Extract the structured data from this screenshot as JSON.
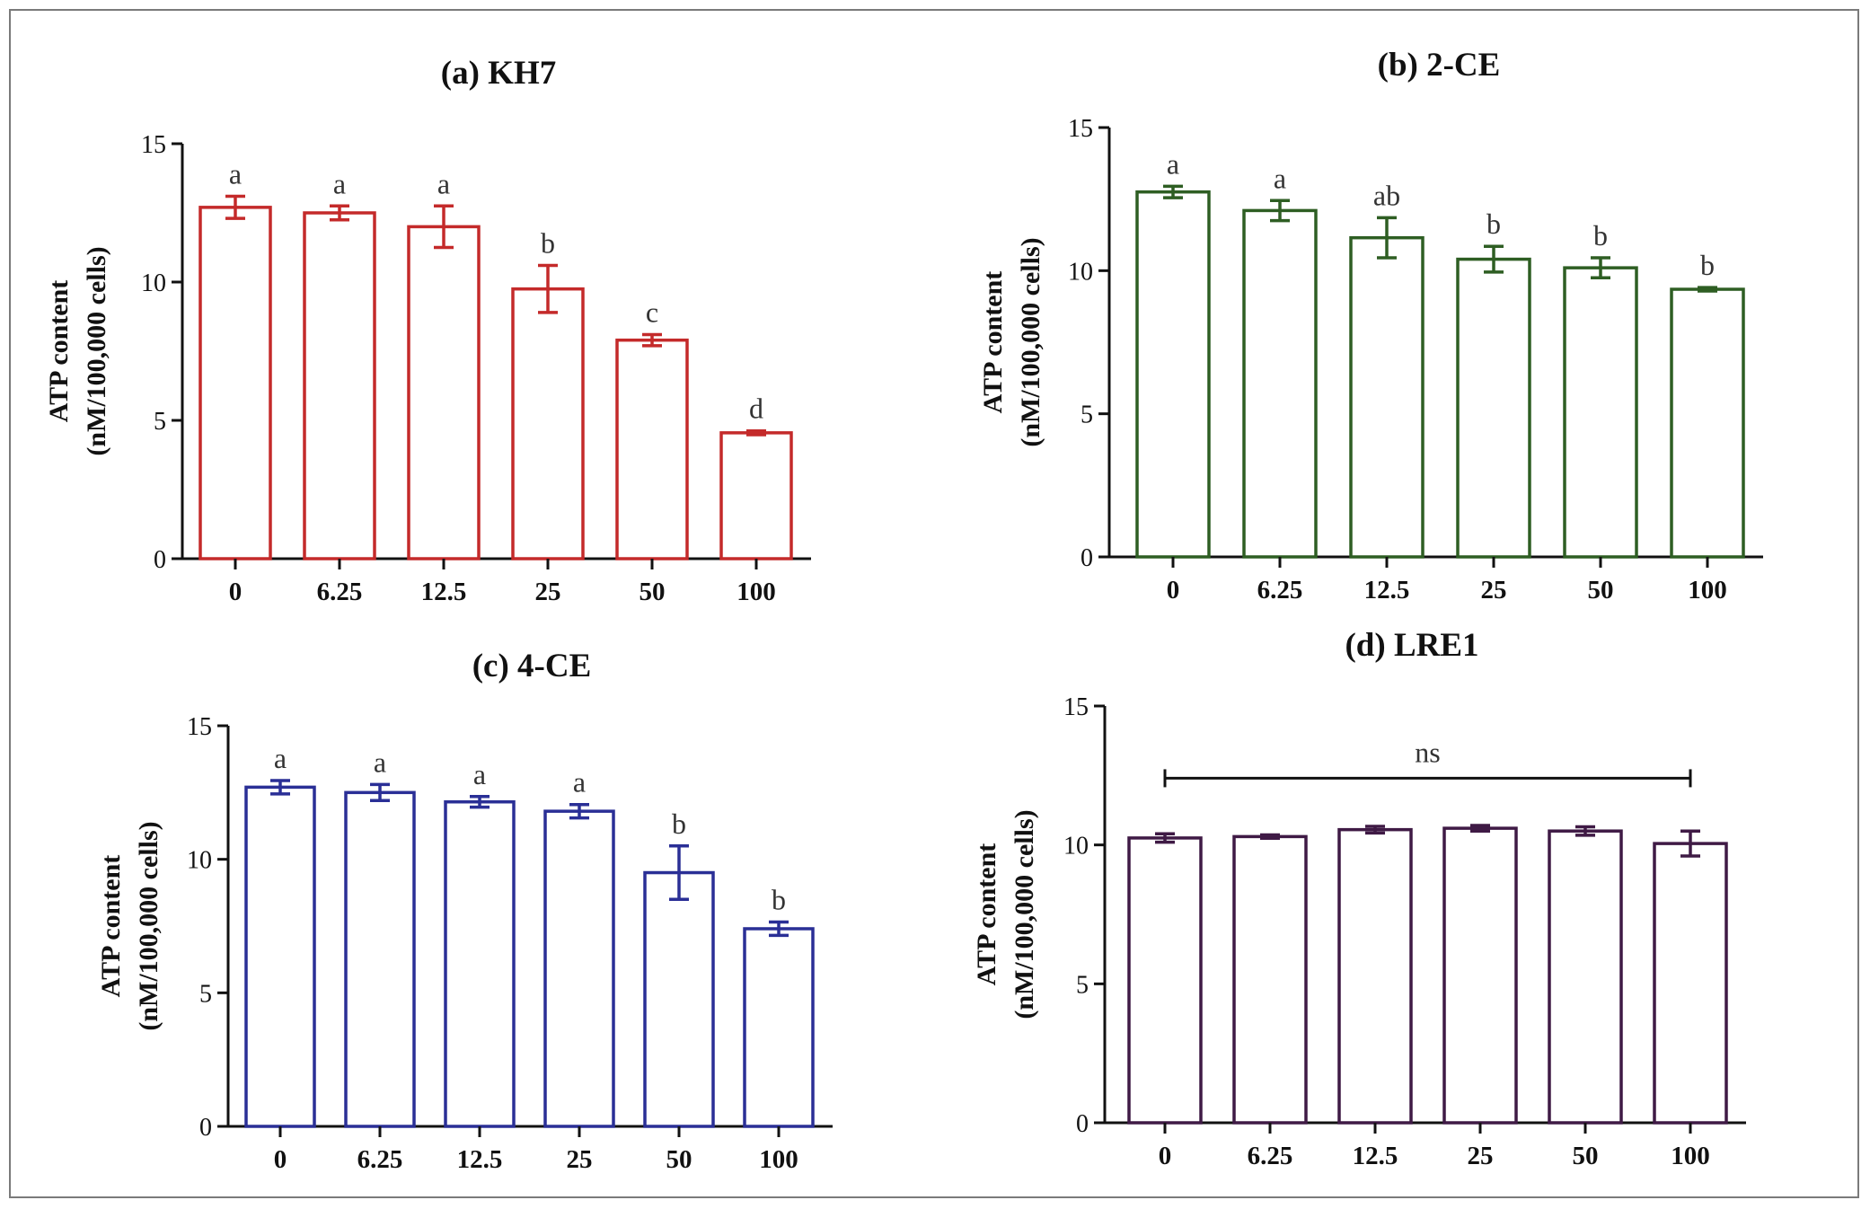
{
  "chart_data": [
    {
      "type": "bar",
      "title": "(a) KH7",
      "xlabel": "",
      "ylabel": [
        "ATP content",
        "(nM/100,000 cells)"
      ],
      "ylim": [
        0,
        15
      ],
      "yticks": [
        "0",
        "5",
        "10",
        "15"
      ],
      "categories": [
        "0",
        "6.25",
        "12.5",
        "25",
        "50",
        "100"
      ],
      "values": [
        12.7,
        12.5,
        12.0,
        9.75,
        7.9,
        4.55
      ],
      "errors": [
        0.4,
        0.25,
        0.75,
        0.85,
        0.2,
        0.07
      ],
      "significance": [
        "a",
        "a",
        "a",
        "b",
        "c",
        "d"
      ],
      "color": "#c42a2a"
    },
    {
      "type": "bar",
      "title": "(b) 2-CE",
      "xlabel": "",
      "ylabel": [
        "ATP content",
        "(nM/100,000 cells)"
      ],
      "ylim": [
        0,
        15
      ],
      "yticks": [
        "0",
        "5",
        "10",
        "15"
      ],
      "categories": [
        "0",
        "6.25",
        "12.5",
        "25",
        "50",
        "100"
      ],
      "values": [
        12.75,
        12.1,
        11.15,
        10.4,
        10.1,
        9.35
      ],
      "errors": [
        0.2,
        0.35,
        0.7,
        0.45,
        0.35,
        0.06
      ],
      "significance": [
        "a",
        "a",
        "ab",
        "b",
        "b",
        "b"
      ],
      "color": "#2e5e23"
    },
    {
      "type": "bar",
      "title": "(c) 4-CE",
      "xlabel": "",
      "ylabel": [
        "ATP content",
        "(nM/100,000 cells)"
      ],
      "ylim": [
        0,
        15
      ],
      "yticks": [
        "0",
        "5",
        "10",
        "15"
      ],
      "categories": [
        "0",
        "6.25",
        "12.5",
        "25",
        "50",
        "100"
      ],
      "values": [
        12.7,
        12.5,
        12.15,
        11.8,
        9.5,
        7.4
      ],
      "errors": [
        0.25,
        0.3,
        0.2,
        0.25,
        1.0,
        0.25
      ],
      "significance": [
        "a",
        "a",
        "a",
        "a",
        "b",
        "b"
      ],
      "color": "#2a2f96"
    },
    {
      "type": "bar",
      "title": "(d) LRE1",
      "xlabel": "",
      "ylabel": [
        "ATP content",
        "(nM/100,000 cells)"
      ],
      "ylim": [
        0,
        15
      ],
      "yticks": [
        "0",
        "5",
        "10",
        "15"
      ],
      "categories": [
        "0",
        "6.25",
        "12.5",
        "25",
        "50",
        "100"
      ],
      "values": [
        10.25,
        10.3,
        10.55,
        10.6,
        10.5,
        10.05
      ],
      "errors": [
        0.15,
        0.06,
        0.12,
        0.1,
        0.15,
        0.45
      ],
      "significance": [
        "",
        "",
        "",
        "",
        "",
        ""
      ],
      "bracket_label": "ns",
      "color": "#3f1a45"
    }
  ]
}
